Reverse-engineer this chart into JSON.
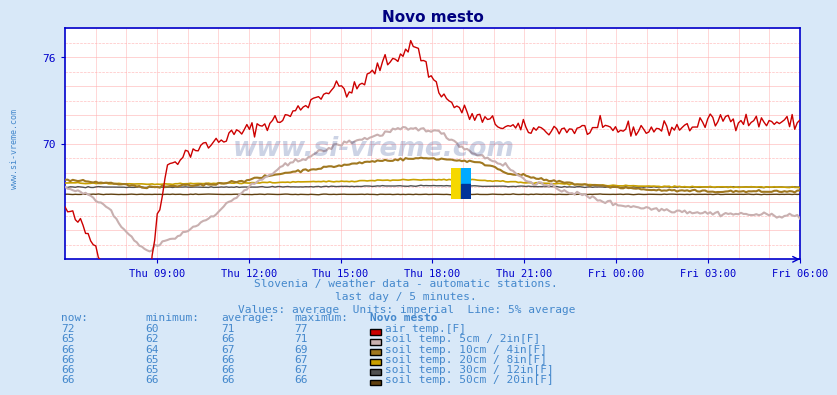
{
  "title": "Novo mesto",
  "background_color": "#d8e8f8",
  "plot_background": "#ffffff",
  "grid_color": "#ffb0b0",
  "title_color": "#000080",
  "axis_color": "#0000cc",
  "spine_color": "#0000cc",
  "text_color": "#4488cc",
  "subtitle_lines": [
    "Slovenia / weather data - automatic stations.",
    "last day / 5 minutes.",
    "Values: average  Units: imperial  Line: 5% average"
  ],
  "watermark": "www.si-vreme.com",
  "x_tick_labels": [
    "Thu 09:00",
    "Thu 12:00",
    "Thu 15:00",
    "Thu 18:00",
    "Thu 21:00",
    "Fri 00:00",
    "Fri 03:00",
    "Fri 06:00"
  ],
  "ylim_low": 62,
  "ylim_high": 78,
  "ytick_vals": [
    70,
    76
  ],
  "ytick_labels": [
    "70",
    "76"
  ],
  "legend_colors": {
    "air_temp": "#cc0000",
    "soil_5cm": "#c8b0b0",
    "soil_10cm": "#a07820",
    "soil_20cm": "#c8a000",
    "soil_30cm": "#505050",
    "soil_50cm": "#604010"
  },
  "table_header": [
    "now:",
    "minimum:",
    "average:",
    "maximum:",
    "Novo mesto"
  ],
  "table_rows": [
    [
      72,
      60,
      71,
      77,
      "air_temp",
      "air temp.[F]"
    ],
    [
      65,
      62,
      66,
      71,
      "soil_5cm",
      "soil temp. 5cm / 2in[F]"
    ],
    [
      66,
      64,
      67,
      69,
      "soil_10cm",
      "soil temp. 10cm / 4in[F]"
    ],
    [
      66,
      65,
      66,
      67,
      "soil_20cm",
      "soil temp. 20cm / 8in[F]"
    ],
    [
      66,
      65,
      66,
      67,
      "soil_30cm",
      "soil temp. 30cm / 12in[F]"
    ],
    [
      66,
      66,
      66,
      66,
      "soil_50cm",
      "soil temp. 50cm / 20in[F]"
    ]
  ]
}
